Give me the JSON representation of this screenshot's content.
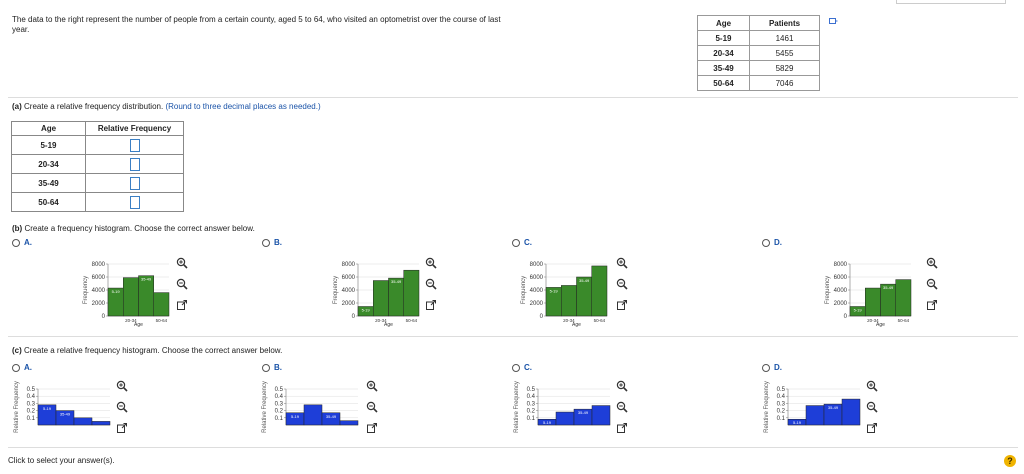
{
  "problem": {
    "intro": "The data to the right represent the number of people from a certain county, aged 5 to 64, who visited an optometrist over the course of last year.",
    "table": {
      "headers": [
        "Age",
        "Patients"
      ],
      "rows": [
        {
          "age": "5-19",
          "patients": "1461"
        },
        {
          "age": "20-34",
          "patients": "5455"
        },
        {
          "age": "35-49",
          "patients": "5829"
        },
        {
          "age": "50-64",
          "patients": "7046"
        }
      ]
    }
  },
  "part_a": {
    "label": "(a)",
    "text": "Create a relative frequency distribution.",
    "hint": "(Round to three decimal places as needed.)",
    "headers": [
      "Age",
      "Relative Frequency"
    ],
    "ages": [
      "5-19",
      "20-34",
      "35-49",
      "50-64"
    ]
  },
  "part_b": {
    "label": "(b)",
    "text": "Create a frequency histogram. Choose the correct answer below.",
    "options": [
      "A.",
      "B.",
      "C.",
      "D."
    ]
  },
  "part_c": {
    "label": "(c)",
    "text": "Create a relative frequency histogram. Choose the correct answer below.",
    "options": [
      "A.",
      "B.",
      "C.",
      "D."
    ]
  },
  "colors": {
    "green_bar": "#3a8a2a",
    "blue_bar": "#1e3ed8",
    "link": "#1a53a8"
  },
  "footer": "Click to select your answer(s).",
  "help_label": "?",
  "chart_data": [
    {
      "id": "b-A",
      "type": "bar",
      "ylabel": "Frequency",
      "xlabel": "Age",
      "ylim": [
        0,
        8000
      ],
      "yticks": [
        "8000",
        "6000",
        "4000",
        "2000",
        "0"
      ],
      "values": [
        4300,
        5900,
        6200,
        3600
      ],
      "bar_labels": [
        "5-19",
        "",
        "35-49",
        ""
      ],
      "xtick_labels": [
        "20-34",
        "50-64"
      ]
    },
    {
      "id": "b-B",
      "type": "bar",
      "ylabel": "Frequency",
      "xlabel": "Age",
      "ylim": [
        0,
        8000
      ],
      "yticks": [
        "8000",
        "6000",
        "4000",
        "2000",
        "0"
      ],
      "values": [
        1461,
        5455,
        5829,
        7046
      ],
      "bar_labels": [
        "5-19",
        "",
        "35-49",
        ""
      ],
      "xtick_labels": [
        "20-34",
        "50-64"
      ]
    },
    {
      "id": "b-C",
      "type": "bar",
      "ylabel": "Frequency",
      "xlabel": "Age",
      "ylim": [
        0,
        8000
      ],
      "yticks": [
        "8000",
        "6000",
        "4000",
        "2000",
        "0"
      ],
      "values": [
        4400,
        4700,
        6000,
        7700
      ],
      "bar_labels": [
        "5-19",
        "",
        "35-49",
        ""
      ],
      "xtick_labels": [
        "20-34",
        "50-64"
      ]
    },
    {
      "id": "b-D",
      "type": "bar",
      "ylabel": "Frequency",
      "xlabel": "Age",
      "ylim": [
        0,
        8000
      ],
      "yticks": [
        "8000",
        "6000",
        "4000",
        "2000",
        "0"
      ],
      "values": [
        1461,
        4300,
        4900,
        5600
      ],
      "bar_labels": [
        "5-19",
        "",
        "35-49",
        ""
      ],
      "xtick_labels": [
        "20-34",
        "50-64"
      ]
    },
    {
      "id": "c-A",
      "type": "bar",
      "ylabel": "Relative Frequency",
      "xlabel": "",
      "ylim": [
        0,
        0.5
      ],
      "yticks": [
        "0.5",
        "0.4",
        "0.3",
        "0.2",
        "0.1"
      ],
      "values": [
        0.28,
        0.2,
        0.1,
        0.05
      ],
      "bar_labels": [
        "5-19",
        "35-49",
        "",
        ""
      ],
      "xtick_labels": []
    },
    {
      "id": "c-B",
      "type": "bar",
      "ylabel": "Relative Frequency",
      "xlabel": "",
      "ylim": [
        0,
        0.5
      ],
      "yticks": [
        "0.5",
        "0.4",
        "0.3",
        "0.2",
        "0.1"
      ],
      "values": [
        0.17,
        0.28,
        0.17,
        0.06
      ],
      "bar_labels": [
        "5-19",
        "",
        "35-49",
        ""
      ],
      "xtick_labels": []
    },
    {
      "id": "c-C",
      "type": "bar",
      "ylabel": "Relative Frequency",
      "xlabel": "",
      "ylim": [
        0,
        0.5
      ],
      "yticks": [
        "0.5",
        "0.4",
        "0.3",
        "0.2",
        "0.1"
      ],
      "values": [
        0.08,
        0.18,
        0.22,
        0.27
      ],
      "bar_labels": [
        "5-19",
        "",
        "35-49",
        ""
      ],
      "xtick_labels": []
    },
    {
      "id": "c-D",
      "type": "bar",
      "ylabel": "Relative Frequency",
      "xlabel": "",
      "ylim": [
        0,
        0.5
      ],
      "yticks": [
        "0.5",
        "0.4",
        "0.3",
        "0.2",
        "0.1"
      ],
      "values": [
        0.08,
        0.27,
        0.29,
        0.36
      ],
      "bar_labels": [
        "5-19",
        "",
        "35-49",
        ""
      ],
      "xtick_labels": []
    }
  ]
}
